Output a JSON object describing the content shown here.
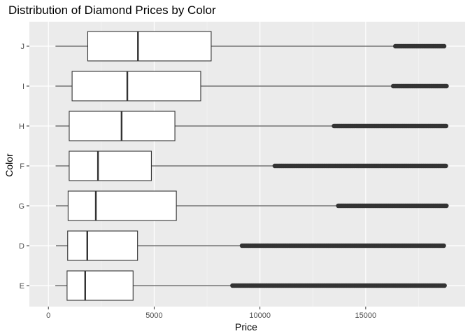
{
  "chart_data": {
    "type": "boxplot",
    "orientation": "horizontal",
    "title": "Distribution of Diamond Prices by Color",
    "xlabel": "Price",
    "ylabel": "Color",
    "xlim": [
      -900,
      19700
    ],
    "x_ticks": [
      0,
      5000,
      10000,
      15000
    ],
    "x_tick_labels": [
      "0",
      "5000",
      "10000",
      "15000"
    ],
    "grid": true,
    "legend": "none",
    "colors": {
      "panel": "#ebebeb",
      "grid_major": "#ffffff",
      "box_fill": "#ffffff",
      "box_line": "#333333",
      "outlier": "#333333"
    },
    "categories": [
      "J",
      "I",
      "H",
      "F",
      "G",
      "D",
      "E"
    ],
    "series": [
      {
        "category": "J",
        "min": 335,
        "q1": 1860,
        "median": 4234,
        "q3": 7695,
        "whisker_high": 16400,
        "outliers_from": 16400,
        "max": 18710
      },
      {
        "category": "I",
        "min": 334,
        "q1": 1120,
        "median": 3730,
        "q3": 7200,
        "whisker_high": 16300,
        "outliers_from": 16300,
        "max": 18823
      },
      {
        "category": "H",
        "min": 337,
        "q1": 984,
        "median": 3460,
        "q3": 5980,
        "whisker_high": 13500,
        "outliers_from": 13500,
        "max": 18803
      },
      {
        "category": "F",
        "min": 342,
        "q1": 982,
        "median": 2344,
        "q3": 4868,
        "whisker_high": 10700,
        "outliers_from": 10700,
        "max": 18791
      },
      {
        "category": "G",
        "min": 354,
        "q1": 931,
        "median": 2242,
        "q3": 6048,
        "whisker_high": 13700,
        "outliers_from": 13700,
        "max": 18818
      },
      {
        "category": "D",
        "min": 357,
        "q1": 911,
        "median": 1838,
        "q3": 4214,
        "whisker_high": 9150,
        "outliers_from": 9150,
        "max": 18693
      },
      {
        "category": "E",
        "min": 326,
        "q1": 882,
        "median": 1739,
        "q3": 4003,
        "whisker_high": 8700,
        "outliers_from": 8700,
        "max": 18731
      }
    ]
  }
}
